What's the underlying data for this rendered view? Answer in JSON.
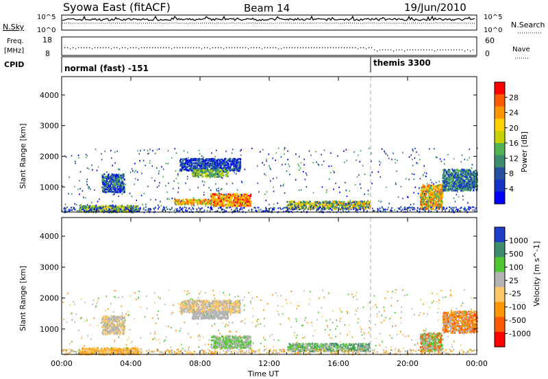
{
  "header": {
    "site": "Syowa East (fitACF)",
    "beam": "Beam 14",
    "date": "19/Jun/2010"
  },
  "chart_data": [
    {
      "type": "line",
      "panel": "noise",
      "left_label": "N.Sky",
      "right_label": "N.Search",
      "left_ticks": [
        "10^5",
        "10^0"
      ],
      "right_ticks": [
        "10^5",
        "10^0"
      ]
    },
    {
      "type": "scatter",
      "panel": "frequency",
      "left_label_lines": [
        "Freq.",
        "[MHz]"
      ],
      "right_label": "Nave",
      "left_ylim": [
        8,
        18
      ],
      "right_ylim": [
        0,
        60
      ],
      "left_ticks": [
        "18",
        "8"
      ],
      "right_ticks": [
        "60",
        "0"
      ]
    },
    {
      "type": "table",
      "panel": "cpid",
      "label": "CPID",
      "segments": [
        {
          "start_hour": 0,
          "text": "normal (fast) -151"
        },
        {
          "start_hour": 18,
          "text": "themis 3300"
        }
      ]
    },
    {
      "type": "heatmap",
      "panel": "power",
      "ylabel": "Slant Range [km]",
      "yticks": [
        "4000",
        "3000",
        "2000",
        "1000"
      ],
      "ytick_values": [
        4000,
        3000,
        2000,
        1000
      ],
      "ylim": [
        180,
        4600
      ],
      "xlim": [
        0,
        24
      ],
      "colorbar_label": "Power [dB]",
      "colorbar_ticks": [
        "28",
        "24",
        "20",
        "16",
        "12",
        "8",
        "4"
      ],
      "colorbar_colors": [
        "#ff0000",
        "#ff5a00",
        "#ff9600",
        "#ffd200",
        "#c8d200",
        "#50b450",
        "#3c8c6e",
        "#2850a0",
        "#1432c8",
        "#0000ff"
      ],
      "blobs": [
        {
          "h0": 1.0,
          "h1": 4.4,
          "r0": 200,
          "r1": 420,
          "levels": [
            3,
            4,
            5,
            6,
            7
          ]
        },
        {
          "h0": 2.3,
          "h1": 3.6,
          "r0": 850,
          "r1": 1450,
          "levels": [
            5,
            6,
            7,
            8,
            9
          ]
        },
        {
          "h0": 6.8,
          "h1": 10.3,
          "r0": 1550,
          "r1": 1950,
          "levels": [
            6,
            7,
            8,
            9
          ]
        },
        {
          "h0": 7.5,
          "h1": 9.6,
          "r0": 1350,
          "r1": 1600,
          "levels": [
            4,
            5,
            6
          ]
        },
        {
          "h0": 6.5,
          "h1": 9.0,
          "r0": 450,
          "r1": 620,
          "levels": [
            1,
            2,
            3,
            4,
            5
          ]
        },
        {
          "h0": 8.6,
          "h1": 10.9,
          "r0": 400,
          "r1": 800,
          "levels": [
            0,
            1,
            2,
            3,
            4
          ]
        },
        {
          "h0": 13.0,
          "h1": 17.8,
          "r0": 300,
          "r1": 560,
          "levels": [
            2,
            3,
            4,
            5,
            6,
            7
          ]
        },
        {
          "h0": 20.7,
          "h1": 22.0,
          "r0": 300,
          "r1": 1100,
          "levels": [
            1,
            2,
            3,
            5
          ]
        },
        {
          "h0": 22.0,
          "h1": 24.0,
          "r0": 900,
          "r1": 1600,
          "levels": [
            5,
            6,
            7,
            8
          ]
        }
      ]
    },
    {
      "type": "heatmap",
      "panel": "velocity",
      "ylabel": "Slant Range [km]",
      "xlabel": "Time UT",
      "xticks": [
        "00:00",
        "04:00",
        "08:00",
        "12:00",
        "16:00",
        "20:00",
        "00:00"
      ],
      "xtick_hours": [
        0,
        4,
        8,
        12,
        16,
        20,
        24
      ],
      "yticks": [
        "4000",
        "3000",
        "2000",
        "1000"
      ],
      "ytick_values": [
        4000,
        3000,
        2000,
        1000
      ],
      "ylim": [
        180,
        4600
      ],
      "xlim": [
        0,
        24
      ],
      "colorbar_label": "Velocity [m s^-1]",
      "colorbar_ticks": [
        "1000",
        "500",
        "100",
        "25",
        "-25",
        "-100",
        "-500",
        "-1000"
      ],
      "colorbar_colors": [
        "#1e3cc8",
        "#3c8c6e",
        "#50c832",
        "#b4b4b4",
        "#ffc864",
        "#ff9600",
        "#ff5a00",
        "#ff0000"
      ],
      "blobs": [
        {
          "h0": 1.0,
          "h1": 4.4,
          "r0": 200,
          "r1": 420,
          "levels": [
            4,
            5
          ]
        },
        {
          "h0": 2.3,
          "h1": 3.6,
          "r0": 850,
          "r1": 1450,
          "levels": [
            3,
            4
          ]
        },
        {
          "h0": 6.8,
          "h1": 10.3,
          "r0": 1550,
          "r1": 1950,
          "levels": [
            3,
            4
          ]
        },
        {
          "h0": 7.5,
          "h1": 9.6,
          "r0": 1350,
          "r1": 1600,
          "levels": [
            3
          ]
        },
        {
          "h0": 8.6,
          "h1": 10.9,
          "r0": 400,
          "r1": 800,
          "levels": [
            2,
            3
          ]
        },
        {
          "h0": 13.0,
          "h1": 17.8,
          "r0": 300,
          "r1": 560,
          "levels": [
            1,
            2,
            3
          ]
        },
        {
          "h0": 20.7,
          "h1": 22.0,
          "r0": 300,
          "r1": 900,
          "levels": [
            2,
            3,
            6
          ]
        },
        {
          "h0": 22.0,
          "h1": 24.0,
          "r0": 900,
          "r1": 1600,
          "levels": [
            3,
            5,
            6
          ]
        }
      ]
    }
  ]
}
